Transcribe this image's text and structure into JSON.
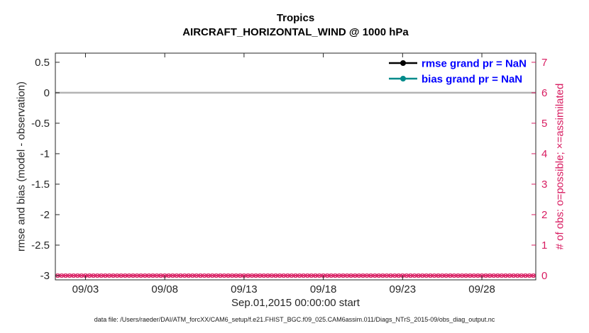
{
  "caption": "data file: /Users/raeder/DAI/ATM_forcXX/CAM6_setup/f.e21.FHIST_BGC.f09_025.CAM6assim.011/Diags_NTrS_2015-09/obs_diag_output.nc",
  "chart_data": {
    "type": "line",
    "title": "Tropics",
    "subtitle": "AIRCRAFT_HORIZONTAL_WIND @ 1000 hPa",
    "xlabel": "Sep.01,2015 00:00:00 start",
    "grid": false,
    "x_axis": {
      "domain": [
        1.1,
        31.4
      ],
      "ticks": [
        {
          "value": 3,
          "label": "09/03"
        },
        {
          "value": 8,
          "label": "09/08"
        },
        {
          "value": 13,
          "label": "09/13"
        },
        {
          "value": 18,
          "label": "09/18"
        },
        {
          "value": 23,
          "label": "09/23"
        },
        {
          "value": 28,
          "label": "09/28"
        }
      ]
    },
    "y_left": {
      "label": "rmse and bias (model - observation)",
      "range": [
        -3.07,
        0.65
      ],
      "color": "#262626",
      "ticks": [
        {
          "value": 0.5,
          "label": "0.5"
        },
        {
          "value": 0,
          "label": "0"
        },
        {
          "value": -0.5,
          "label": "-0.5"
        },
        {
          "value": -1,
          "label": "-1"
        },
        {
          "value": -1.5,
          "label": "-1.5"
        },
        {
          "value": -2,
          "label": "-2"
        },
        {
          "value": -2.5,
          "label": "-2.5"
        },
        {
          "value": -3,
          "label": "-3"
        }
      ]
    },
    "y_right": {
      "label": "# of obs: o=possible; ×=assimilated",
      "range": [
        -0.14,
        7.3
      ],
      "color": "#d81b60",
      "ticks": [
        {
          "value": 7,
          "label": "7"
        },
        {
          "value": 6,
          "label": "6"
        },
        {
          "value": 5,
          "label": "5"
        },
        {
          "value": 4,
          "label": "4"
        },
        {
          "value": 3,
          "label": "3"
        },
        {
          "value": 2,
          "label": "2"
        },
        {
          "value": 1,
          "label": "1"
        },
        {
          "value": 0,
          "label": "0"
        }
      ]
    },
    "zero_line": {
      "value": 0,
      "color": "#b3b3b3",
      "width": 2.5
    },
    "series": [
      {
        "name": "rmse",
        "legend_label": "rmse grand pr = NaN",
        "color": "#000000",
        "grand_value": "NaN",
        "points": []
      },
      {
        "name": "bias",
        "legend_label": "bias grand pr = NaN",
        "color": "#008b8b",
        "grand_value": "NaN",
        "points": []
      }
    ],
    "obs_row": {
      "axis": "right",
      "value": 0,
      "color": "#d81b60",
      "marker_possible": "o",
      "marker_assimilated": "x",
      "start_day": 1.25,
      "end_day": 31.25,
      "interval_days": 0.25
    },
    "legend": {
      "text_color": "#0000ff",
      "position": "top-right"
    }
  }
}
